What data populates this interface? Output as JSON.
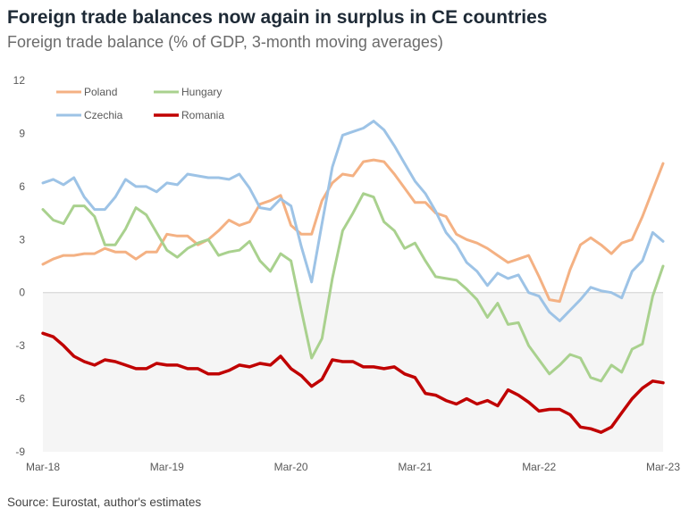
{
  "chart_data": {
    "type": "line",
    "title": "Foreign trade balances now again in surplus in CE countries",
    "subtitle": "Foreign trade balance (% of GDP, 3-month moving averages)",
    "source": "Source: Eurostat, author's estimates",
    "xlabel": "",
    "ylabel": "",
    "ylim": [
      -9,
      12
    ],
    "yticks": [
      "12",
      "9",
      "6",
      "3",
      "0",
      "-3",
      "-6",
      "-9"
    ],
    "ytick_values": [
      12,
      9,
      6,
      3,
      0,
      -3,
      -6,
      -9
    ],
    "xticks": [
      "Mar-18",
      "Mar-19",
      "Mar-20",
      "Mar-21",
      "Mar-22",
      "Mar-23"
    ],
    "x_start": "Mar-18",
    "x_end": "Mar-23",
    "frequency": "monthly",
    "legend_placement": "top-left",
    "series": [
      {
        "name": "Poland",
        "color": "#f4b183",
        "width": 3,
        "values": [
          1.6,
          1.9,
          2.1,
          2.1,
          2.2,
          2.2,
          2.5,
          2.3,
          2.3,
          1.9,
          2.3,
          2.3,
          3.3,
          3.2,
          3.2,
          2.7,
          3.0,
          3.5,
          4.1,
          3.8,
          4.0,
          5.0,
          5.2,
          5.5,
          3.8,
          3.3,
          3.3,
          5.2,
          6.2,
          6.7,
          6.6,
          7.4,
          7.5,
          7.4,
          6.7,
          5.9,
          5.1,
          5.1,
          4.5,
          4.3,
          3.3,
          3.0,
          2.8,
          2.5,
          2.1,
          1.7,
          1.9,
          2.1,
          0.9,
          -0.4,
          -0.5,
          1.3,
          2.7,
          3.1,
          2.7,
          2.2,
          2.8,
          3.0,
          4.3,
          5.8,
          7.3
        ]
      },
      {
        "name": "Hungary",
        "color": "#a9d18e",
        "width": 3,
        "values": [
          4.7,
          4.1,
          3.9,
          4.9,
          4.9,
          4.3,
          2.7,
          2.7,
          3.6,
          4.8,
          4.4,
          3.4,
          2.4,
          2.0,
          2.5,
          2.8,
          3.0,
          2.1,
          2.3,
          2.4,
          2.9,
          1.8,
          1.2,
          2.2,
          1.8,
          -1.0,
          -3.7,
          -2.6,
          0.8,
          3.5,
          4.5,
          5.6,
          5.4,
          4.0,
          3.5,
          2.5,
          2.8,
          1.8,
          0.9,
          0.8,
          0.7,
          0.2,
          -0.4,
          -1.4,
          -0.6,
          -1.8,
          -1.7,
          -3.0,
          -3.8,
          -4.6,
          -4.1,
          -3.5,
          -3.7,
          -4.8,
          -5.0,
          -4.1,
          -4.5,
          -3.2,
          -2.9,
          -0.2,
          1.5
        ]
      },
      {
        "name": "Czechia",
        "color": "#9dc3e6",
        "width": 3,
        "values": [
          6.2,
          6.4,
          6.1,
          6.5,
          5.4,
          4.7,
          4.7,
          5.4,
          6.4,
          6.0,
          6.0,
          5.7,
          6.2,
          6.1,
          6.7,
          6.6,
          6.5,
          6.5,
          6.4,
          6.7,
          5.9,
          4.8,
          4.7,
          5.3,
          4.9,
          2.6,
          0.6,
          3.9,
          7.1,
          8.9,
          9.1,
          9.3,
          9.7,
          9.2,
          8.3,
          7.3,
          6.3,
          5.6,
          4.6,
          3.4,
          2.7,
          1.7,
          1.2,
          0.4,
          1.1,
          0.8,
          1.0,
          0.0,
          -0.2,
          -1.1,
          -1.6,
          -1.0,
          -0.4,
          0.3,
          0.1,
          0.0,
          -0.3,
          1.2,
          1.8,
          3.4,
          2.9
        ]
      },
      {
        "name": "Romania",
        "color": "#c00000",
        "width": 3.5,
        "values": [
          -2.3,
          -2.5,
          -3.0,
          -3.6,
          -3.9,
          -4.1,
          -3.8,
          -3.9,
          -4.1,
          -4.3,
          -4.3,
          -4.0,
          -4.1,
          -4.1,
          -4.3,
          -4.3,
          -4.6,
          -4.6,
          -4.4,
          -4.1,
          -4.2,
          -4.0,
          -4.1,
          -3.6,
          -4.3,
          -4.7,
          -5.3,
          -4.9,
          -3.8,
          -3.9,
          -3.9,
          -4.2,
          -4.2,
          -4.3,
          -4.2,
          -4.6,
          -4.8,
          -5.7,
          -5.8,
          -6.1,
          -6.3,
          -6.0,
          -6.3,
          -6.1,
          -6.4,
          -5.5,
          -5.8,
          -6.2,
          -6.7,
          -6.6,
          -6.6,
          -6.9,
          -7.6,
          -7.7,
          -7.9,
          -7.6,
          -6.8,
          -6.0,
          -5.4,
          -5.0,
          -5.1
        ]
      }
    ],
    "negative_region_fill": "#f5f5f5"
  }
}
